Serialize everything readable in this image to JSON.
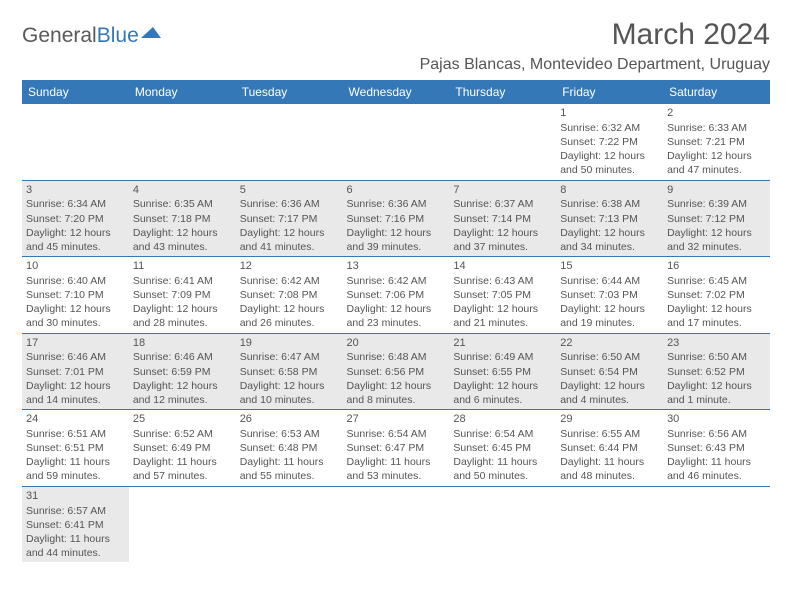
{
  "colors": {
    "header_bg": "#3478b8",
    "header_text": "#ffffff",
    "body_text": "#555555",
    "shaded_bg": "#e9e9e9",
    "border": "#3478b8",
    "page_bg": "#ffffff"
  },
  "logo": {
    "text1": "General",
    "text2": "Blue"
  },
  "title": "March 2024",
  "location": "Pajas Blancas, Montevideo Department, Uruguay",
  "day_headers": [
    "Sunday",
    "Monday",
    "Tuesday",
    "Wednesday",
    "Thursday",
    "Friday",
    "Saturday"
  ],
  "weeks": [
    [
      {
        "empty": true
      },
      {
        "empty": true
      },
      {
        "empty": true
      },
      {
        "empty": true
      },
      {
        "empty": true
      },
      {
        "day": "1",
        "sunrise": "Sunrise: 6:32 AM",
        "sunset": "Sunset: 7:22 PM",
        "daylight1": "Daylight: 12 hours",
        "daylight2": "and 50 minutes."
      },
      {
        "day": "2",
        "sunrise": "Sunrise: 6:33 AM",
        "sunset": "Sunset: 7:21 PM",
        "daylight1": "Daylight: 12 hours",
        "daylight2": "and 47 minutes."
      }
    ],
    [
      {
        "day": "3",
        "shaded": true,
        "sunrise": "Sunrise: 6:34 AM",
        "sunset": "Sunset: 7:20 PM",
        "daylight1": "Daylight: 12 hours",
        "daylight2": "and 45 minutes."
      },
      {
        "day": "4",
        "shaded": true,
        "sunrise": "Sunrise: 6:35 AM",
        "sunset": "Sunset: 7:18 PM",
        "daylight1": "Daylight: 12 hours",
        "daylight2": "and 43 minutes."
      },
      {
        "day": "5",
        "shaded": true,
        "sunrise": "Sunrise: 6:36 AM",
        "sunset": "Sunset: 7:17 PM",
        "daylight1": "Daylight: 12 hours",
        "daylight2": "and 41 minutes."
      },
      {
        "day": "6",
        "shaded": true,
        "sunrise": "Sunrise: 6:36 AM",
        "sunset": "Sunset: 7:16 PM",
        "daylight1": "Daylight: 12 hours",
        "daylight2": "and 39 minutes."
      },
      {
        "day": "7",
        "shaded": true,
        "sunrise": "Sunrise: 6:37 AM",
        "sunset": "Sunset: 7:14 PM",
        "daylight1": "Daylight: 12 hours",
        "daylight2": "and 37 minutes."
      },
      {
        "day": "8",
        "shaded": true,
        "sunrise": "Sunrise: 6:38 AM",
        "sunset": "Sunset: 7:13 PM",
        "daylight1": "Daylight: 12 hours",
        "daylight2": "and 34 minutes."
      },
      {
        "day": "9",
        "shaded": true,
        "sunrise": "Sunrise: 6:39 AM",
        "sunset": "Sunset: 7:12 PM",
        "daylight1": "Daylight: 12 hours",
        "daylight2": "and 32 minutes."
      }
    ],
    [
      {
        "day": "10",
        "sunrise": "Sunrise: 6:40 AM",
        "sunset": "Sunset: 7:10 PM",
        "daylight1": "Daylight: 12 hours",
        "daylight2": "and 30 minutes."
      },
      {
        "day": "11",
        "sunrise": "Sunrise: 6:41 AM",
        "sunset": "Sunset: 7:09 PM",
        "daylight1": "Daylight: 12 hours",
        "daylight2": "and 28 minutes."
      },
      {
        "day": "12",
        "sunrise": "Sunrise: 6:42 AM",
        "sunset": "Sunset: 7:08 PM",
        "daylight1": "Daylight: 12 hours",
        "daylight2": "and 26 minutes."
      },
      {
        "day": "13",
        "sunrise": "Sunrise: 6:42 AM",
        "sunset": "Sunset: 7:06 PM",
        "daylight1": "Daylight: 12 hours",
        "daylight2": "and 23 minutes."
      },
      {
        "day": "14",
        "sunrise": "Sunrise: 6:43 AM",
        "sunset": "Sunset: 7:05 PM",
        "daylight1": "Daylight: 12 hours",
        "daylight2": "and 21 minutes."
      },
      {
        "day": "15",
        "sunrise": "Sunrise: 6:44 AM",
        "sunset": "Sunset: 7:03 PM",
        "daylight1": "Daylight: 12 hours",
        "daylight2": "and 19 minutes."
      },
      {
        "day": "16",
        "sunrise": "Sunrise: 6:45 AM",
        "sunset": "Sunset: 7:02 PM",
        "daylight1": "Daylight: 12 hours",
        "daylight2": "and 17 minutes."
      }
    ],
    [
      {
        "day": "17",
        "shaded": true,
        "sunrise": "Sunrise: 6:46 AM",
        "sunset": "Sunset: 7:01 PM",
        "daylight1": "Daylight: 12 hours",
        "daylight2": "and 14 minutes."
      },
      {
        "day": "18",
        "shaded": true,
        "sunrise": "Sunrise: 6:46 AM",
        "sunset": "Sunset: 6:59 PM",
        "daylight1": "Daylight: 12 hours",
        "daylight2": "and 12 minutes."
      },
      {
        "day": "19",
        "shaded": true,
        "sunrise": "Sunrise: 6:47 AM",
        "sunset": "Sunset: 6:58 PM",
        "daylight1": "Daylight: 12 hours",
        "daylight2": "and 10 minutes."
      },
      {
        "day": "20",
        "shaded": true,
        "sunrise": "Sunrise: 6:48 AM",
        "sunset": "Sunset: 6:56 PM",
        "daylight1": "Daylight: 12 hours",
        "daylight2": "and 8 minutes."
      },
      {
        "day": "21",
        "shaded": true,
        "sunrise": "Sunrise: 6:49 AM",
        "sunset": "Sunset: 6:55 PM",
        "daylight1": "Daylight: 12 hours",
        "daylight2": "and 6 minutes."
      },
      {
        "day": "22",
        "shaded": true,
        "sunrise": "Sunrise: 6:50 AM",
        "sunset": "Sunset: 6:54 PM",
        "daylight1": "Daylight: 12 hours",
        "daylight2": "and 4 minutes."
      },
      {
        "day": "23",
        "shaded": true,
        "sunrise": "Sunrise: 6:50 AM",
        "sunset": "Sunset: 6:52 PM",
        "daylight1": "Daylight: 12 hours",
        "daylight2": "and 1 minute."
      }
    ],
    [
      {
        "day": "24",
        "sunrise": "Sunrise: 6:51 AM",
        "sunset": "Sunset: 6:51 PM",
        "daylight1": "Daylight: 11 hours",
        "daylight2": "and 59 minutes."
      },
      {
        "day": "25",
        "sunrise": "Sunrise: 6:52 AM",
        "sunset": "Sunset: 6:49 PM",
        "daylight1": "Daylight: 11 hours",
        "daylight2": "and 57 minutes."
      },
      {
        "day": "26",
        "sunrise": "Sunrise: 6:53 AM",
        "sunset": "Sunset: 6:48 PM",
        "daylight1": "Daylight: 11 hours",
        "daylight2": "and 55 minutes."
      },
      {
        "day": "27",
        "sunrise": "Sunrise: 6:54 AM",
        "sunset": "Sunset: 6:47 PM",
        "daylight1": "Daylight: 11 hours",
        "daylight2": "and 53 minutes."
      },
      {
        "day": "28",
        "sunrise": "Sunrise: 6:54 AM",
        "sunset": "Sunset: 6:45 PM",
        "daylight1": "Daylight: 11 hours",
        "daylight2": "and 50 minutes."
      },
      {
        "day": "29",
        "sunrise": "Sunrise: 6:55 AM",
        "sunset": "Sunset: 6:44 PM",
        "daylight1": "Daylight: 11 hours",
        "daylight2": "and 48 minutes."
      },
      {
        "day": "30",
        "sunrise": "Sunrise: 6:56 AM",
        "sunset": "Sunset: 6:43 PM",
        "daylight1": "Daylight: 11 hours",
        "daylight2": "and 46 minutes."
      }
    ],
    [
      {
        "day": "31",
        "shaded": true,
        "sunrise": "Sunrise: 6:57 AM",
        "sunset": "Sunset: 6:41 PM",
        "daylight1": "Daylight: 11 hours",
        "daylight2": "and 44 minutes."
      },
      {
        "empty": true,
        "noborder": true
      },
      {
        "empty": true,
        "noborder": true
      },
      {
        "empty": true,
        "noborder": true
      },
      {
        "empty": true,
        "noborder": true
      },
      {
        "empty": true,
        "noborder": true
      },
      {
        "empty": true,
        "noborder": true
      }
    ]
  ]
}
